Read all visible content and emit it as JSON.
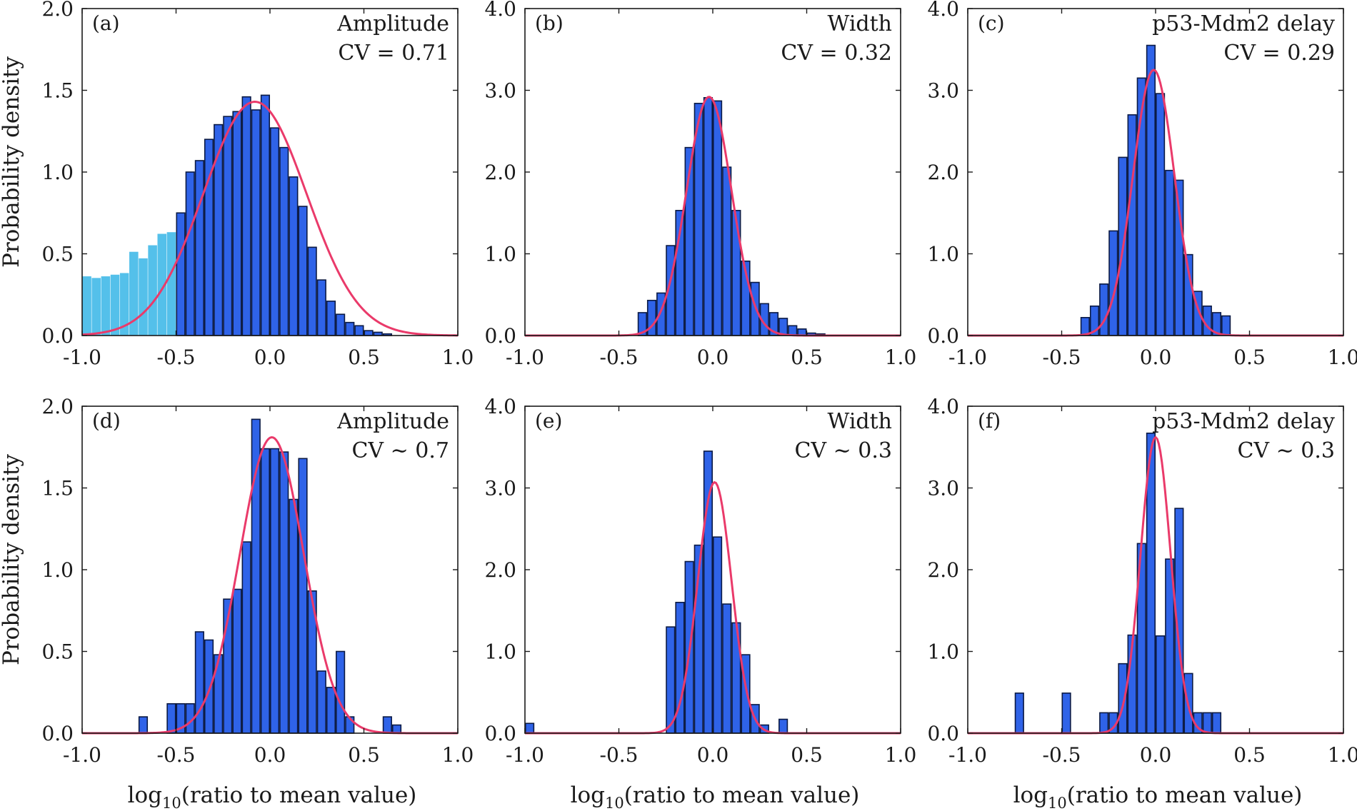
{
  "figure": {
    "xlabel_prefix": "log",
    "xlabel_subscript": "10",
    "xlabel_suffix": "(ratio to mean value)",
    "ylabel": "Probability density"
  },
  "colors": {
    "bar": "#2f63e8",
    "bar_edge": "#0b1a44",
    "bar_excluded": "#54c0ea",
    "fit": "#ea3a6a"
  },
  "chart_data": [
    {
      "type": "bar",
      "tag": "(a)",
      "title": "Amplitude",
      "cv": "CV = 0.71",
      "xlim": [
        -1.0,
        1.0
      ],
      "ylim": [
        0,
        2.0
      ],
      "xticks": [
        "-1.0",
        "-0.5",
        "0.0",
        "0.5",
        "1.0"
      ],
      "yticks": [
        "0.0",
        "0.5",
        "1.0",
        "1.5",
        "2.0"
      ],
      "bin_width": 0.05,
      "excluded_below": -0.5,
      "x": [
        -0.975,
        -0.925,
        -0.875,
        -0.825,
        -0.775,
        -0.725,
        -0.675,
        -0.625,
        -0.575,
        -0.525,
        -0.475,
        -0.425,
        -0.375,
        -0.325,
        -0.275,
        -0.225,
        -0.175,
        -0.125,
        -0.075,
        -0.025,
        0.025,
        0.075,
        0.125,
        0.175,
        0.225,
        0.275,
        0.325,
        0.375,
        0.425,
        0.475,
        0.525,
        0.575,
        0.625,
        0.675,
        0.725
      ],
      "values": [
        0.36,
        0.35,
        0.36,
        0.37,
        0.38,
        0.51,
        0.47,
        0.55,
        0.62,
        0.63,
        0.75,
        1.0,
        1.07,
        1.2,
        1.29,
        1.34,
        1.37,
        1.46,
        1.38,
        1.47,
        1.27,
        1.15,
        0.97,
        0.79,
        0.54,
        0.34,
        0.21,
        0.13,
        0.08,
        0.06,
        0.03,
        0.02,
        0.01,
        0.0,
        0.0
      ],
      "fit": {
        "mu": -0.08,
        "sigma": 0.275,
        "peak": 1.43
      }
    },
    {
      "type": "bar",
      "tag": "(b)",
      "title": "Width",
      "cv": "CV = 0.32",
      "xlim": [
        -1.0,
        1.0
      ],
      "ylim": [
        0,
        4.0
      ],
      "xticks": [
        "-1.0",
        "-0.5",
        "0.0",
        "0.5",
        "1.0"
      ],
      "yticks": [
        "0.0",
        "1.0",
        "2.0",
        "3.0",
        "4.0"
      ],
      "bin_width": 0.05,
      "x": [
        -0.375,
        -0.325,
        -0.275,
        -0.225,
        -0.175,
        -0.125,
        -0.075,
        -0.025,
        0.025,
        0.075,
        0.125,
        0.175,
        0.225,
        0.275,
        0.325,
        0.375,
        0.425,
        0.475,
        0.525,
        0.575
      ],
      "values": [
        0.28,
        0.43,
        0.52,
        1.1,
        1.53,
        2.3,
        2.84,
        2.91,
        2.87,
        2.06,
        1.53,
        0.91,
        0.65,
        0.39,
        0.28,
        0.21,
        0.12,
        0.08,
        0.03,
        0.02
      ],
      "fit": {
        "mu": -0.02,
        "sigma": 0.12,
        "peak": 2.92
      }
    },
    {
      "type": "bar",
      "tag": "(c)",
      "title": "p53-Mdm2 delay",
      "cv": "CV = 0.29",
      "xlim": [
        -1.0,
        1.0
      ],
      "ylim": [
        0,
        4.0
      ],
      "xticks": [
        "-1.0",
        "-0.5",
        "0.0",
        "0.5",
        "1.0"
      ],
      "yticks": [
        "0.0",
        "1.0",
        "2.0",
        "3.0",
        "4.0"
      ],
      "bin_width": 0.05,
      "x": [
        -0.375,
        -0.325,
        -0.275,
        -0.225,
        -0.175,
        -0.125,
        -0.075,
        -0.025,
        0.025,
        0.075,
        0.125,
        0.175,
        0.225,
        0.275,
        0.325,
        0.375
      ],
      "values": [
        0.22,
        0.36,
        0.63,
        1.28,
        2.18,
        2.7,
        3.15,
        3.55,
        2.96,
        2.02,
        1.9,
        0.99,
        0.54,
        0.36,
        0.28,
        0.24
      ],
      "fit": {
        "mu": -0.01,
        "sigma": 0.11,
        "peak": 3.25
      }
    },
    {
      "type": "bar",
      "tag": "(d)",
      "title": "Amplitude",
      "cv": "CV ∼ 0.7",
      "xlim": [
        -1.0,
        1.0
      ],
      "ylim": [
        0,
        2.0
      ],
      "xticks": [
        "-1.0",
        "-0.5",
        "0.0",
        "0.5",
        "1.0"
      ],
      "yticks": [
        "0.0",
        "0.5",
        "1.0",
        "1.5",
        "2.0"
      ],
      "bin_width": 0.05,
      "x": [
        -0.675,
        -0.625,
        -0.575,
        -0.525,
        -0.475,
        -0.425,
        -0.375,
        -0.325,
        -0.275,
        -0.225,
        -0.175,
        -0.125,
        -0.075,
        -0.025,
        0.025,
        0.075,
        0.125,
        0.175,
        0.225,
        0.275,
        0.325,
        0.375,
        0.425,
        0.475,
        0.525,
        0.575,
        0.625,
        0.675
      ],
      "values": [
        0.1,
        0.0,
        0.0,
        0.18,
        0.18,
        0.18,
        0.62,
        0.57,
        0.48,
        0.82,
        0.88,
        1.17,
        1.92,
        1.74,
        1.74,
        1.72,
        1.43,
        1.68,
        0.87,
        0.38,
        0.28,
        0.5,
        0.1,
        0.0,
        0.0,
        0.0,
        0.1,
        0.05
      ],
      "fit": {
        "mu": 0.01,
        "sigma": 0.17,
        "peak": 1.81
      }
    },
    {
      "type": "bar",
      "tag": "(e)",
      "title": "Width",
      "cv": "CV ∼ 0.3",
      "xlim": [
        -1.0,
        1.0
      ],
      "ylim": [
        0,
        4.0
      ],
      "xticks": [
        "-1.0",
        "-0.5",
        "0.0",
        "0.5",
        "1.0"
      ],
      "yticks": [
        "0.0",
        "1.0",
        "2.0",
        "3.0",
        "4.0"
      ],
      "bin_width": 0.05,
      "x": [
        -0.975,
        -0.225,
        -0.175,
        -0.125,
        -0.075,
        -0.025,
        0.025,
        0.075,
        0.125,
        0.175,
        0.225,
        0.275,
        0.325,
        0.375
      ],
      "values": [
        0.12,
        1.3,
        1.6,
        2.1,
        2.3,
        3.45,
        2.4,
        1.58,
        1.35,
        0.96,
        0.35,
        0.1,
        0.0,
        0.17
      ],
      "fit": {
        "mu": 0.01,
        "sigma": 0.09,
        "peak": 3.07
      }
    },
    {
      "type": "bar",
      "tag": "(f)",
      "title": "p53-Mdm2 delay",
      "cv": "CV ∼ 0.3",
      "xlim": [
        -1.0,
        1.0
      ],
      "ylim": [
        0,
        4.0
      ],
      "xticks": [
        "-1.0",
        "-0.5",
        "0.0",
        "0.5",
        "1.0"
      ],
      "yticks": [
        "0.0",
        "1.0",
        "2.0",
        "3.0",
        "4.0"
      ],
      "bin_width": 0.05,
      "x": [
        -0.725,
        -0.475,
        -0.275,
        -0.225,
        -0.175,
        -0.125,
        -0.075,
        -0.025,
        0.025,
        0.075,
        0.125,
        0.175,
        0.225,
        0.275,
        0.325
      ],
      "values": [
        0.49,
        0.49,
        0.25,
        0.25,
        0.85,
        1.2,
        2.32,
        3.67,
        1.19,
        2.13,
        2.75,
        0.73,
        0.25,
        0.25,
        0.25
      ],
      "fit": {
        "mu": 0.0,
        "sigma": 0.08,
        "peak": 3.62
      }
    }
  ]
}
